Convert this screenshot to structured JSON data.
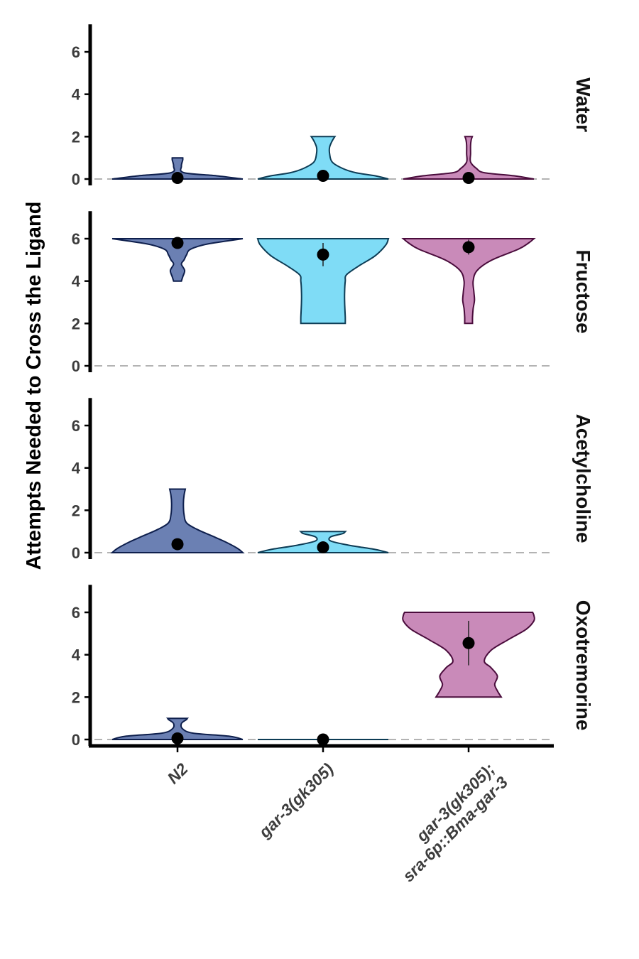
{
  "chart_data": {
    "type": "violin",
    "ylabel": "Attempts Needed to Cross the Ligand",
    "xlabel": "",
    "ylim": [
      -0.3,
      7.3
    ],
    "yticks": [
      0,
      2,
      4,
      6
    ],
    "reference_line": 0,
    "categories": [
      {
        "lines": [
          "N2"
        ],
        "color": "#6b80b3",
        "stroke": "#0e1f4d"
      },
      {
        "lines": [
          "gar-3(gk305)"
        ],
        "color": "#7fdcf6",
        "stroke": "#0d3c55"
      },
      {
        "lines": [
          "gar-3(gk305);",
          "sra-6p::Bma-gar-3"
        ],
        "color": "#c98ab9",
        "stroke": "#4a0c3c"
      }
    ],
    "facets": [
      {
        "label": "Water",
        "groups": [
          {
            "mean": 0.05,
            "ci": [
              0.0,
              0.1
            ],
            "min": 0,
            "max": 1,
            "density": [
              [
                0,
                0.5
              ],
              [
                0.15,
                0.3
              ],
              [
                0.3,
                0.05
              ],
              [
                0.6,
                0.03
              ],
              [
                0.9,
                0.04
              ],
              [
                1,
                0.04
              ]
            ]
          },
          {
            "mean": 0.15,
            "ci": [
              0.05,
              0.25
            ],
            "min": 0,
            "max": 2,
            "density": [
              [
                0,
                0.5
              ],
              [
                0.15,
                0.4
              ],
              [
                0.3,
                0.25
              ],
              [
                0.5,
                0.15
              ],
              [
                0.8,
                0.07
              ],
              [
                1.2,
                0.05
              ],
              [
                1.5,
                0.05
              ],
              [
                1.8,
                0.07
              ],
              [
                2,
                0.09
              ]
            ]
          },
          {
            "mean": 0.05,
            "ci": [
              0.0,
              0.15
            ],
            "min": 0,
            "max": 2,
            "density": [
              [
                0,
                0.5
              ],
              [
                0.15,
                0.35
              ],
              [
                0.3,
                0.12
              ],
              [
                0.5,
                0.06
              ],
              [
                0.8,
                0.015
              ],
              [
                1.2,
                0.015
              ],
              [
                1.6,
                0.015
              ],
              [
                1.85,
                0.02
              ],
              [
                2,
                0.028
              ]
            ]
          }
        ]
      },
      {
        "label": "Fructose",
        "groups": [
          {
            "mean": 5.8,
            "ci": [
              5.65,
              5.95
            ],
            "min": 4,
            "max": 6,
            "density": [
              [
                4,
                0.03
              ],
              [
                4.2,
                0.04
              ],
              [
                4.5,
                0.055
              ],
              [
                4.8,
                0.03
              ],
              [
                5.0,
                0.05
              ],
              [
                5.25,
                0.07
              ],
              [
                5.5,
                0.1
              ],
              [
                5.75,
                0.23
              ],
              [
                6,
                0.5
              ]
            ]
          },
          {
            "mean": 5.25,
            "ci": [
              4.7,
              5.8
            ],
            "min": 2,
            "max": 6,
            "density": [
              [
                2,
                0.17
              ],
              [
                2.3,
                0.17
              ],
              [
                3,
                0.165
              ],
              [
                3.5,
                0.165
              ],
              [
                4,
                0.17
              ],
              [
                4.3,
                0.18
              ],
              [
                4.7,
                0.27
              ],
              [
                5.2,
                0.4
              ],
              [
                5.7,
                0.48
              ],
              [
                6,
                0.5
              ]
            ]
          },
          {
            "mean": 5.6,
            "ci": [
              5.25,
              5.95
            ],
            "min": 2,
            "max": 6,
            "density": [
              [
                2,
                0.03
              ],
              [
                2.3,
                0.03
              ],
              [
                2.7,
                0.035
              ],
              [
                3.1,
                0.045
              ],
              [
                3.5,
                0.04
              ],
              [
                4.0,
                0.035
              ],
              [
                4.5,
                0.065
              ],
              [
                5.0,
                0.18
              ],
              [
                5.5,
                0.38
              ],
              [
                5.8,
                0.46
              ],
              [
                6,
                0.5
              ]
            ]
          }
        ]
      },
      {
        "label": "Acetylcholine",
        "groups": [
          {
            "mean": 0.4,
            "ci": [
              0.2,
              0.6
            ],
            "min": 0,
            "max": 3,
            "density": [
              [
                0,
                0.5
              ],
              [
                0.2,
                0.46
              ],
              [
                0.5,
                0.37
              ],
              [
                0.8,
                0.26
              ],
              [
                1.1,
                0.15
              ],
              [
                1.4,
                0.07
              ],
              [
                1.8,
                0.05
              ],
              [
                2.3,
                0.045
              ],
              [
                2.7,
                0.05
              ],
              [
                3,
                0.06
              ]
            ]
          },
          {
            "mean": 0.25,
            "ci": [
              0.1,
              0.4
            ],
            "min": 0,
            "max": 1,
            "density": [
              [
                0,
                0.5
              ],
              [
                0.15,
                0.4
              ],
              [
                0.35,
                0.2
              ],
              [
                0.55,
                0.06
              ],
              [
                0.75,
                0.06
              ],
              [
                0.9,
                0.15
              ],
              [
                1,
                0.17
              ]
            ]
          }
        ]
      },
      {
        "label": "Oxotremorine",
        "groups": [
          {
            "mean": 0.05,
            "ci": [
              0.0,
              0.1
            ],
            "min": 0,
            "max": 1,
            "density": [
              [
                0,
                0.5
              ],
              [
                0.15,
                0.4
              ],
              [
                0.3,
                0.12
              ],
              [
                0.5,
                0.04
              ],
              [
                0.75,
                0.03
              ],
              [
                0.95,
                0.07
              ],
              [
                1,
                0.075
              ]
            ]
          },
          {
            "mean": 0.0,
            "ci": [
              0.0,
              0.0
            ],
            "min": 0,
            "max": 0,
            "flat": true
          },
          {
            "mean": 4.55,
            "ci": [
              3.5,
              5.6
            ],
            "min": 2,
            "max": 6,
            "density": [
              [
                2,
                0.25
              ],
              [
                2.3,
                0.22
              ],
              [
                2.6,
                0.2
              ],
              [
                3.0,
                0.22
              ],
              [
                3.4,
                0.17
              ],
              [
                3.7,
                0.12
              ],
              [
                4.2,
                0.17
              ],
              [
                4.7,
                0.3
              ],
              [
                5.2,
                0.44
              ],
              [
                5.6,
                0.5
              ],
              [
                5.85,
                0.5
              ],
              [
                6,
                0.49
              ]
            ]
          }
        ]
      }
    ]
  }
}
